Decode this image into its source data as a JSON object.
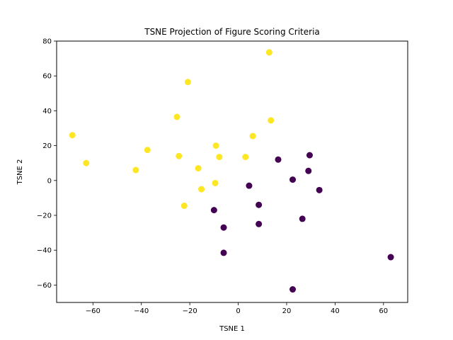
{
  "chart_data": {
    "type": "scatter",
    "title": "TSNE Projection of Figure Scoring Criteria",
    "xlabel": "TSNE 1",
    "ylabel": "TSNE 2",
    "xlim": [
      -75,
      70
    ],
    "ylim": [
      -70,
      80
    ],
    "xticks": [
      -60,
      -40,
      -20,
      0,
      20,
      40,
      60
    ],
    "yticks": [
      -60,
      -40,
      -20,
      0,
      20,
      40,
      60,
      80
    ],
    "grid": false,
    "series": [
      {
        "color": "#fde725",
        "points": [
          {
            "x": -68.5,
            "y": 26
          },
          {
            "x": -62.8,
            "y": 10
          },
          {
            "x": -42.3,
            "y": 6
          },
          {
            "x": -37.5,
            "y": 17.5
          },
          {
            "x": -25.3,
            "y": 36.5
          },
          {
            "x": -20.8,
            "y": 56.5
          },
          {
            "x": -24.5,
            "y": 14
          },
          {
            "x": -16.5,
            "y": 7
          },
          {
            "x": -15.2,
            "y": -5
          },
          {
            "x": -22.3,
            "y": -14.5
          },
          {
            "x": -9.2,
            "y": 20
          },
          {
            "x": -7.8,
            "y": 13.5
          },
          {
            "x": -9.5,
            "y": -1.5
          },
          {
            "x": 3,
            "y": 13.5
          },
          {
            "x": 6,
            "y": 25.5
          },
          {
            "x": 12.8,
            "y": 73.5
          },
          {
            "x": 13.5,
            "y": 34.5
          }
        ]
      },
      {
        "color": "#440154",
        "points": [
          {
            "x": 16.5,
            "y": 12
          },
          {
            "x": 29.5,
            "y": 14.5
          },
          {
            "x": 29,
            "y": 5.5
          },
          {
            "x": 22.5,
            "y": 0.5
          },
          {
            "x": 33.5,
            "y": -5.5
          },
          {
            "x": 4.5,
            "y": -3
          },
          {
            "x": 8.5,
            "y": -14
          },
          {
            "x": 8.5,
            "y": -25
          },
          {
            "x": 26.5,
            "y": -22
          },
          {
            "x": -10,
            "y": -17
          },
          {
            "x": -6,
            "y": -27
          },
          {
            "x": -6,
            "y": -41.5
          },
          {
            "x": 22.5,
            "y": -62.5
          },
          {
            "x": 63,
            "y": -44
          }
        ]
      }
    ]
  }
}
